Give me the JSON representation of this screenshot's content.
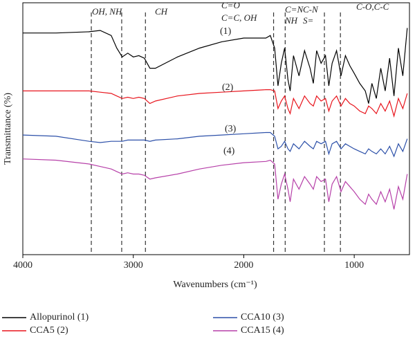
{
  "chart_data": {
    "type": "line",
    "x_label": "Wavenumbers (cm⁻¹)",
    "y_label": "Transmittance (%)",
    "xlim": [
      4000,
      500
    ],
    "xticks": [
      4000,
      3000,
      2000,
      1000
    ],
    "ylim": [
      0,
      100
    ],
    "vlines": [
      3380,
      3105,
      2890,
      1730,
      1625,
      1270,
      1125
    ],
    "annotations": [
      "OH, NH",
      "CH",
      "C=O",
      "C=C, OH",
      "C=N",
      "NH",
      "C-N",
      "S=",
      "C-O,C-C",
      "(1)",
      "(2)",
      "(3)",
      "(4)"
    ],
    "x": [
      4000,
      3700,
      3400,
      3300,
      3200,
      3150,
      3100,
      3050,
      3000,
      2950,
      2900,
      2850,
      2800,
      2600,
      2400,
      2200,
      2000,
      1800,
      1760,
      1720,
      1690,
      1660,
      1630,
      1600,
      1580,
      1550,
      1500,
      1450,
      1400,
      1370,
      1340,
      1300,
      1260,
      1230,
      1200,
      1160,
      1120,
      1080,
      1040,
      1000,
      950,
      900,
      870,
      840,
      800,
      760,
      720,
      680,
      640,
      600,
      560,
      520
    ],
    "series": [
      {
        "name": "Allopurinol (1)",
        "color": "#000000",
        "values": [
          88,
          88,
          88.5,
          89,
          87,
          82,
          78.5,
          80,
          78.5,
          79,
          78,
          74,
          74,
          78.5,
          82,
          84.5,
          86,
          86,
          87,
          82,
          67,
          76,
          82,
          69.5,
          65,
          79,
          71,
          81,
          74,
          68,
          81,
          76,
          79,
          67,
          76,
          81,
          71,
          79,
          75,
          72,
          68,
          65,
          60,
          68,
          62,
          74,
          65,
          78,
          63,
          82,
          71,
          90
        ]
      },
      {
        "name": "CCA5 (2)",
        "color": "#e8141c",
        "values": [
          65,
          65,
          65,
          64.5,
          64,
          63,
          62,
          62.5,
          62,
          62.5,
          62,
          60,
          61,
          63,
          64,
          64.5,
          65,
          65.5,
          65.5,
          65,
          58,
          61,
          63,
          58,
          56,
          62,
          58,
          63,
          60,
          59,
          63,
          61,
          62,
          57,
          61,
          63,
          59,
          62,
          60,
          59,
          57,
          56,
          59,
          58,
          56,
          60,
          57,
          61,
          55,
          62,
          58,
          64
        ]
      },
      {
        "name": "CCA10 (3)",
        "color": "#2b4fa8",
        "values": [
          47.5,
          47,
          45,
          44.5,
          45,
          45,
          45,
          45.5,
          45.5,
          45.5,
          45.5,
          45,
          45.5,
          46,
          47,
          47.5,
          48,
          48.5,
          48.5,
          47,
          42,
          43,
          45,
          42,
          41,
          44,
          42,
          45,
          43,
          42,
          45,
          44,
          45,
          40,
          44,
          45,
          42,
          44,
          43,
          42,
          41,
          40,
          42,
          41,
          40,
          42,
          40,
          43,
          39,
          44,
          41,
          46
        ]
      },
      {
        "name": "CCA15 (4)",
        "color": "#b63fa8",
        "values": [
          38,
          37.5,
          36,
          35,
          34,
          33,
          32,
          32.5,
          32,
          32,
          31.5,
          30,
          30.5,
          32,
          34,
          35.5,
          36.5,
          37,
          37.5,
          36,
          22,
          28,
          32,
          26,
          21,
          30,
          26,
          31,
          28,
          26,
          31,
          29,
          30,
          21,
          28,
          31,
          25,
          29,
          27,
          25,
          22,
          20,
          24,
          22,
          20,
          25,
          21,
          26,
          18,
          27,
          22,
          32
        ]
      }
    ]
  }
}
